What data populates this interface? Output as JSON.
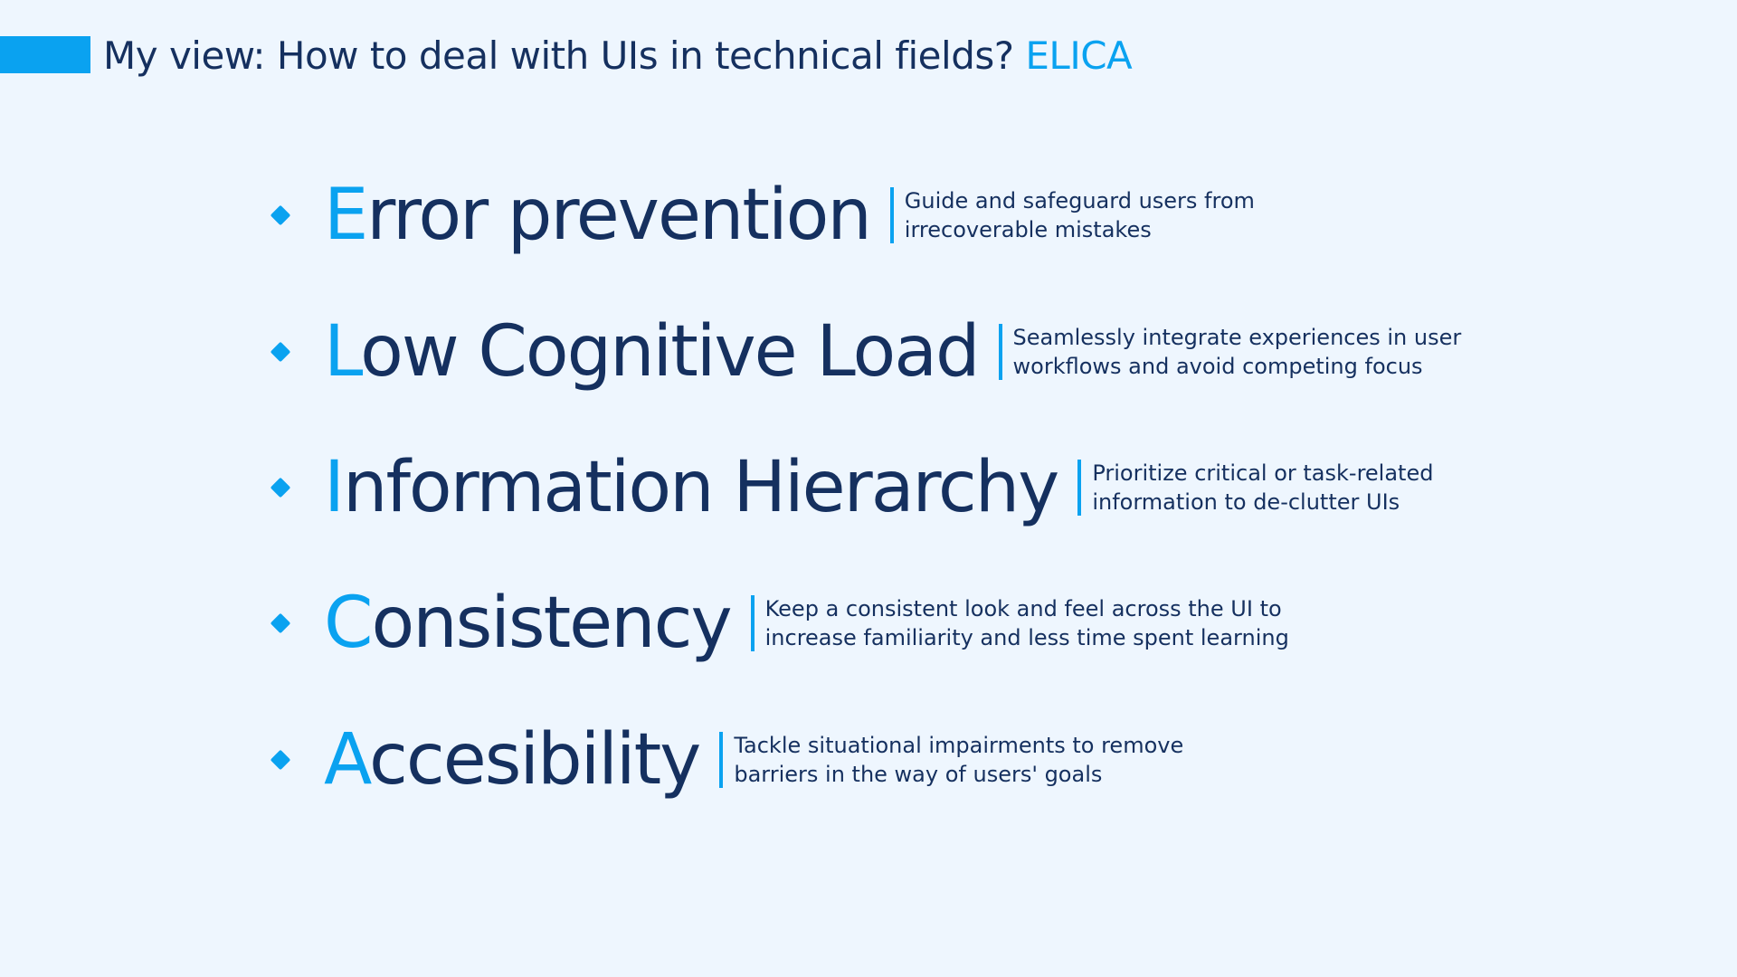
{
  "header": {
    "title_main": "My view: How to deal with UIs in technical fields?",
    "title_accent": "ELICA"
  },
  "items": [
    {
      "initial": "E",
      "rest": "rror prevention",
      "desc_line1": "Guide and safeguard users from",
      "desc_line2": "irrecoverable mistakes"
    },
    {
      "initial": "L",
      "rest": "ow Cognitive Load",
      "desc_line1": "Seamlessly integrate experiences in user",
      "desc_line2": "workflows and avoid competing focus"
    },
    {
      "initial": "I",
      "rest": "nformation Hierarchy",
      "desc_line1": "Prioritize critical or task-related",
      "desc_line2": "information to de-clutter UIs"
    },
    {
      "initial": "C",
      "rest": "onsistency",
      "desc_line1": "Keep a consistent look and feel across the UI to",
      "desc_line2": "increase familiarity and less time spent learning"
    },
    {
      "initial": "A",
      "rest": "ccesibility",
      "desc_line1": "Tackle situational impairments to remove",
      "desc_line2": "barriers in the way of users' goals"
    }
  ],
  "colors": {
    "accent": "#0aa2f0",
    "text": "#15305f",
    "background": "#eef6fe"
  }
}
